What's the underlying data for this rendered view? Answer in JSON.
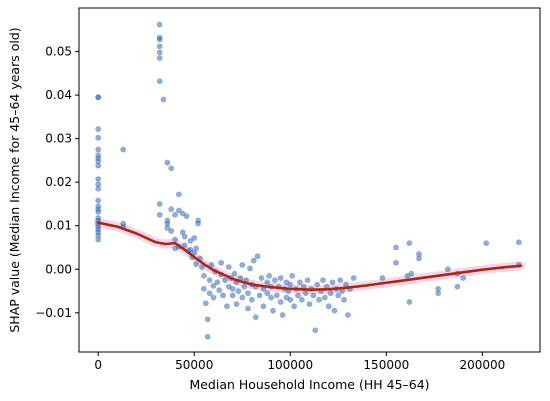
{
  "chart_data": {
    "type": "scatter",
    "title": "",
    "xlabel": "Median Household Income (HH 45–64)",
    "ylabel": "SHAP value (Median Income for 45–64 years old)",
    "xlim": [
      -10000,
      230000
    ],
    "ylim": [
      -0.019,
      0.06
    ],
    "x_ticks": [
      {
        "value": 0,
        "label": "0"
      },
      {
        "value": 50000,
        "label": "50000"
      },
      {
        "value": 100000,
        "label": "100000"
      },
      {
        "value": 150000,
        "label": "150000"
      },
      {
        "value": 200000,
        "label": "200000"
      }
    ],
    "y_ticks": [
      {
        "value": -0.01,
        "label": "−0.01"
      },
      {
        "value": 0.0,
        "label": "0.00"
      },
      {
        "value": 0.01,
        "label": "0.01"
      },
      {
        "value": 0.02,
        "label": "0.02"
      },
      {
        "value": 0.03,
        "label": "0.03"
      },
      {
        "value": 0.04,
        "label": "0.04"
      },
      {
        "value": 0.05,
        "label": "0.05"
      }
    ],
    "grid": false,
    "legend": "none",
    "series": [
      {
        "kind": "scatter",
        "color": "#1f77b4",
        "edge_color": "#9467bd",
        "points": [
          [
            0,
            0.0395
          ],
          [
            0,
            0.0395
          ],
          [
            0,
            0.0322
          ],
          [
            0,
            0.0302
          ],
          [
            0,
            0.0275
          ],
          [
            0,
            0.0262
          ],
          [
            0,
            0.0255
          ],
          [
            0,
            0.0248
          ],
          [
            0,
            0.0238
          ],
          [
            0,
            0.0207
          ],
          [
            0,
            0.0195
          ],
          [
            0,
            0.0185
          ],
          [
            0,
            0.0158
          ],
          [
            0,
            0.0145
          ],
          [
            0,
            0.0138
          ],
          [
            0,
            0.0132
          ],
          [
            0,
            0.0118
          ],
          [
            0,
            0.0112
          ],
          [
            0,
            0.0105
          ],
          [
            0,
            0.0098
          ],
          [
            0,
            0.0092
          ],
          [
            0,
            0.0085
          ],
          [
            0,
            0.0078
          ],
          [
            0,
            0.0068
          ],
          [
            13000,
            0.0275
          ],
          [
            13000,
            0.0105
          ],
          [
            13000,
            0.0098
          ],
          [
            32000,
            0.0562
          ],
          [
            32000,
            0.0532
          ],
          [
            32000,
            0.0528
          ],
          [
            32000,
            0.0512
          ],
          [
            32000,
            0.0498
          ],
          [
            32000,
            0.0485
          ],
          [
            32000,
            0.0432
          ],
          [
            34000,
            0.039
          ],
          [
            32000,
            0.015
          ],
          [
            32000,
            0.0125
          ],
          [
            36000,
            0.0245
          ],
          [
            36000,
            0.0112
          ],
          [
            36000,
            0.0105
          ],
          [
            36000,
            0.0095
          ],
          [
            38000,
            0.0232
          ],
          [
            38000,
            0.0138
          ],
          [
            38000,
            0.0088
          ],
          [
            40000,
            0.0125
          ],
          [
            40000,
            0.0068
          ],
          [
            40000,
            0.0048
          ],
          [
            42000,
            0.0172
          ],
          [
            42000,
            0.0135
          ],
          [
            42000,
            0.0052
          ],
          [
            44000,
            0.0128
          ],
          [
            44000,
            0.0085
          ],
          [
            45000,
            0.0075
          ],
          [
            45000,
            0.0055
          ],
          [
            46000,
            0.0122
          ],
          [
            47000,
            0.0042
          ],
          [
            48000,
            0.0065
          ],
          [
            48000,
            0.0045
          ],
          [
            49000,
            0.0028
          ],
          [
            50000,
            0.0072
          ],
          [
            50000,
            0.0038
          ],
          [
            51000,
            0.0012
          ],
          [
            51000,
            0.0048
          ],
          [
            52000,
            0.0112
          ],
          [
            52000,
            0.0105
          ],
          [
            53000,
            0.0025
          ],
          [
            54000,
            0.0005
          ],
          [
            55000,
            -0.0015
          ],
          [
            55000,
            -0.0045
          ],
          [
            56000,
            -0.0078
          ],
          [
            57000,
            -0.0115
          ],
          [
            57000,
            -0.0155
          ],
          [
            58000,
            -0.0055
          ],
          [
            58000,
            -0.0025
          ],
          [
            59000,
            0.001
          ],
          [
            60000,
            -0.0038
          ],
          [
            60000,
            -0.0065
          ],
          [
            61000,
            -0.0005
          ],
          [
            62000,
            -0.003
          ],
          [
            63000,
            -0.0048
          ],
          [
            64000,
            -0.0012
          ],
          [
            64000,
            0.0015
          ],
          [
            65000,
            -0.006
          ],
          [
            66000,
            -0.0025
          ],
          [
            67000,
            -0.0085
          ],
          [
            68000,
            -0.004
          ],
          [
            68000,
            0.0005
          ],
          [
            69000,
            -0.002
          ],
          [
            70000,
            -0.006
          ],
          [
            70000,
            -0.0045
          ],
          [
            71000,
            -0.001
          ],
          [
            72000,
            -0.003
          ],
          [
            72000,
            -0.008
          ],
          [
            73000,
            -0.005
          ],
          [
            74000,
            -0.002
          ],
          [
            75000,
            0.001
          ],
          [
            75000,
            -0.0065
          ],
          [
            76000,
            -0.004
          ],
          [
            77000,
            -0.0025
          ],
          [
            78000,
            -0.009
          ],
          [
            78000,
            -0.0055
          ],
          [
            79000,
            0.0002
          ],
          [
            80000,
            -0.0035
          ],
          [
            80000,
            -0.007
          ],
          [
            81000,
            0.002
          ],
          [
            82000,
            -0.011
          ],
          [
            82000,
            -0.004
          ],
          [
            83000,
            0.003
          ],
          [
            84000,
            -0.006
          ],
          [
            85000,
            -0.002
          ],
          [
            86000,
            -0.0045
          ],
          [
            86000,
            -0.0085
          ],
          [
            88000,
            -0.003
          ],
          [
            88000,
            -0.0055
          ],
          [
            89000,
            -0.0015
          ],
          [
            90000,
            -0.0065
          ],
          [
            90000,
            -0.004
          ],
          [
            91000,
            -0.0095
          ],
          [
            92000,
            -0.0025
          ],
          [
            93000,
            -0.006
          ],
          [
            94000,
            -0.004
          ],
          [
            95000,
            -0.0075
          ],
          [
            95000,
            -0.002
          ],
          [
            96000,
            -0.0105
          ],
          [
            97000,
            -0.0045
          ],
          [
            98000,
            -0.003
          ],
          [
            98000,
            -0.0065
          ],
          [
            99000,
            -0.005
          ],
          [
            100000,
            -0.0035
          ],
          [
            100000,
            -0.007
          ],
          [
            101000,
            -0.0015
          ],
          [
            102000,
            -0.0085
          ],
          [
            103000,
            -0.0045
          ],
          [
            104000,
            -0.006
          ],
          [
            105000,
            -0.003
          ],
          [
            106000,
            -0.007
          ],
          [
            107000,
            -0.004
          ],
          [
            108000,
            -0.0055
          ],
          [
            109000,
            -0.0025
          ],
          [
            110000,
            -0.008
          ],
          [
            111000,
            -0.0045
          ],
          [
            112000,
            -0.006
          ],
          [
            113000,
            -0.014
          ],
          [
            114000,
            -0.0035
          ],
          [
            115000,
            -0.007
          ],
          [
            116000,
            -0.005
          ],
          [
            117000,
            -0.0025
          ],
          [
            118000,
            -0.0065
          ],
          [
            119000,
            -0.004
          ],
          [
            120000,
            -0.0085
          ],
          [
            121000,
            -0.0055
          ],
          [
            122000,
            -0.003
          ],
          [
            123000,
            -0.0095
          ],
          [
            124000,
            -0.0045
          ],
          [
            125000,
            -0.006
          ],
          [
            126000,
            -0.0025
          ],
          [
            127000,
            -0.005
          ],
          [
            128000,
            -0.007
          ],
          [
            129000,
            -0.0035
          ],
          [
            130000,
            -0.0105
          ],
          [
            131000,
            -0.0045
          ],
          [
            133000,
            -0.002
          ],
          [
            148000,
            -0.002
          ],
          [
            155000,
            0.005
          ],
          [
            155000,
            0.0015
          ],
          [
            161000,
            -0.0015
          ],
          [
            162000,
            -0.0075
          ],
          [
            162000,
            0.006
          ],
          [
            163000,
            -0.001
          ],
          [
            167000,
            0.0035
          ],
          [
            167000,
            0.0025
          ],
          [
            177000,
            -0.0045
          ],
          [
            177000,
            -0.0055
          ],
          [
            182000,
            0.0
          ],
          [
            187000,
            -0.001
          ],
          [
            187000,
            -0.004
          ],
          [
            190000,
            -0.002
          ],
          [
            202000,
            0.006
          ],
          [
            219000,
            0.0062
          ],
          [
            219000,
            0.001
          ]
        ]
      },
      {
        "kind": "line",
        "color": "#a32b14",
        "points": [
          [
            0,
            0.0107
          ],
          [
            10000,
            0.0098
          ],
          [
            20000,
            0.0082
          ],
          [
            30000,
            0.0062
          ],
          [
            35000,
            0.0058
          ],
          [
            40000,
            0.006
          ],
          [
            45000,
            0.0045
          ],
          [
            50000,
            0.0028
          ],
          [
            55000,
            0.0012
          ],
          [
            60000,
            -0.0002
          ],
          [
            65000,
            -0.0012
          ],
          [
            70000,
            -0.0022
          ],
          [
            75000,
            -0.0029
          ],
          [
            80000,
            -0.0035
          ],
          [
            90000,
            -0.0041
          ],
          [
            100000,
            -0.0045
          ],
          [
            110000,
            -0.0047
          ],
          [
            120000,
            -0.0046
          ],
          [
            130000,
            -0.0042
          ],
          [
            140000,
            -0.0037
          ],
          [
            150000,
            -0.0031
          ],
          [
            160000,
            -0.0025
          ],
          [
            170000,
            -0.0019
          ],
          [
            180000,
            -0.0013
          ],
          [
            190000,
            -0.0007
          ],
          [
            200000,
            -0.0001
          ],
          [
            210000,
            0.0004
          ],
          [
            220000,
            0.0008
          ]
        ]
      }
    ]
  }
}
